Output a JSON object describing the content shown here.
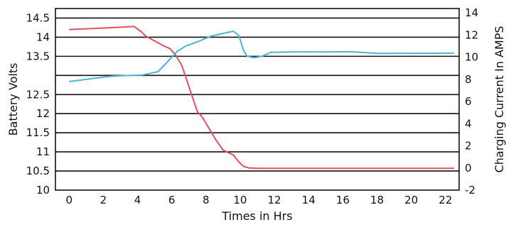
{
  "chart_data": {
    "type": "line",
    "title": "",
    "xlabel": "Times in Hrs",
    "ylabel": "Battery Volts",
    "y2label": "Charging Current In AMPS",
    "xlim": [
      -0.8,
      22.8
    ],
    "ylim": [
      10,
      14.75
    ],
    "y2lim": [
      -2,
      14.4
    ],
    "x_ticks": [
      0,
      2,
      4,
      6,
      8,
      10,
      12,
      14,
      16,
      18,
      20,
      22
    ],
    "y_ticks": [
      10,
      10.5,
      11,
      11.5,
      12,
      12.5,
      13,
      13.5,
      14,
      14.5
    ],
    "y_tick_labels": [
      "10",
      "10.5",
      "11",
      "11.5",
      "12",
      "12.5",
      "",
      "13.5",
      "14",
      "14.5"
    ],
    "y2_ticks": [
      -2,
      0,
      2,
      4,
      6,
      8,
      10,
      12,
      14
    ],
    "grid": true,
    "legend": "none",
    "series": [
      {
        "axis": "left",
        "color": "#e0505f",
        "points": [
          [
            0,
            14.2
          ],
          [
            1,
            14.22
          ],
          [
            2,
            14.24
          ],
          [
            3,
            14.26
          ],
          [
            3.8,
            14.28
          ],
          [
            4.2,
            14.15
          ],
          [
            4.5,
            14.02
          ],
          [
            5,
            13.9
          ],
          [
            5.5,
            13.78
          ],
          [
            5.9,
            13.7
          ],
          [
            6.2,
            13.55
          ],
          [
            6.6,
            13.25
          ],
          [
            6.9,
            12.85
          ],
          [
            7.2,
            12.45
          ],
          [
            7.5,
            12.05
          ],
          [
            7.8,
            11.9
          ],
          [
            8.2,
            11.6
          ],
          [
            8.6,
            11.3
          ],
          [
            9,
            11.05
          ],
          [
            9.3,
            10.98
          ],
          [
            9.6,
            10.92
          ],
          [
            9.9,
            10.75
          ],
          [
            10.2,
            10.62
          ],
          [
            10.5,
            10.58
          ],
          [
            11,
            10.57
          ],
          [
            12,
            10.57
          ],
          [
            14,
            10.57
          ],
          [
            16,
            10.57
          ],
          [
            18,
            10.57
          ],
          [
            20,
            10.57
          ],
          [
            22.5,
            10.57
          ]
        ]
      },
      {
        "axis": "right",
        "color": "#4bb4d8",
        "points": [
          [
            0,
            7.8
          ],
          [
            1,
            8.0
          ],
          [
            2,
            8.2
          ],
          [
            2.6,
            8.3
          ],
          [
            3.5,
            8.35
          ],
          [
            4.3,
            8.4
          ],
          [
            5.2,
            8.7
          ],
          [
            5.7,
            9.5
          ],
          [
            6.3,
            10.5
          ],
          [
            6.8,
            11.0
          ],
          [
            7.5,
            11.4
          ],
          [
            8.3,
            11.9
          ],
          [
            9,
            12.15
          ],
          [
            9.6,
            12.35
          ],
          [
            9.9,
            12.0
          ],
          [
            10,
            11.6
          ],
          [
            10.2,
            10.6
          ],
          [
            10.4,
            10.1
          ],
          [
            10.8,
            9.95
          ],
          [
            11.3,
            10.1
          ],
          [
            11.8,
            10.45
          ],
          [
            13,
            10.47
          ],
          [
            15,
            10.48
          ],
          [
            16.5,
            10.5
          ],
          [
            18,
            10.35
          ],
          [
            20,
            10.36
          ],
          [
            22.5,
            10.37
          ]
        ]
      }
    ]
  }
}
